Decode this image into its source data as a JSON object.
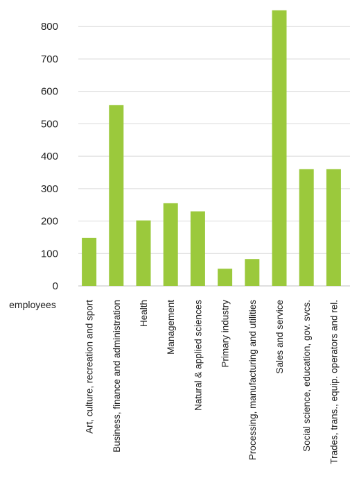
{
  "chart_data": {
    "type": "bar",
    "title": "",
    "xlabel": "",
    "ylabel": "employees",
    "ylim": [
      0,
      850
    ],
    "yticks": [
      0,
      100,
      200,
      300,
      400,
      500,
      600,
      700,
      800
    ],
    "grid": true,
    "bar_color": "#9bc93c",
    "categories": [
      "Art, culture, recreation and sport",
      "Business, finance and administration",
      "Health",
      "Management",
      "Natural & applied sciences",
      "Primary industry",
      "Processing, manufacturing and utilities",
      "Sales and service",
      "Social science, education, gov. svcs.",
      "Trades, trans., equip. operators and rel."
    ],
    "values": [
      148,
      558,
      202,
      255,
      230,
      53,
      83,
      850,
      360,
      360
    ]
  }
}
